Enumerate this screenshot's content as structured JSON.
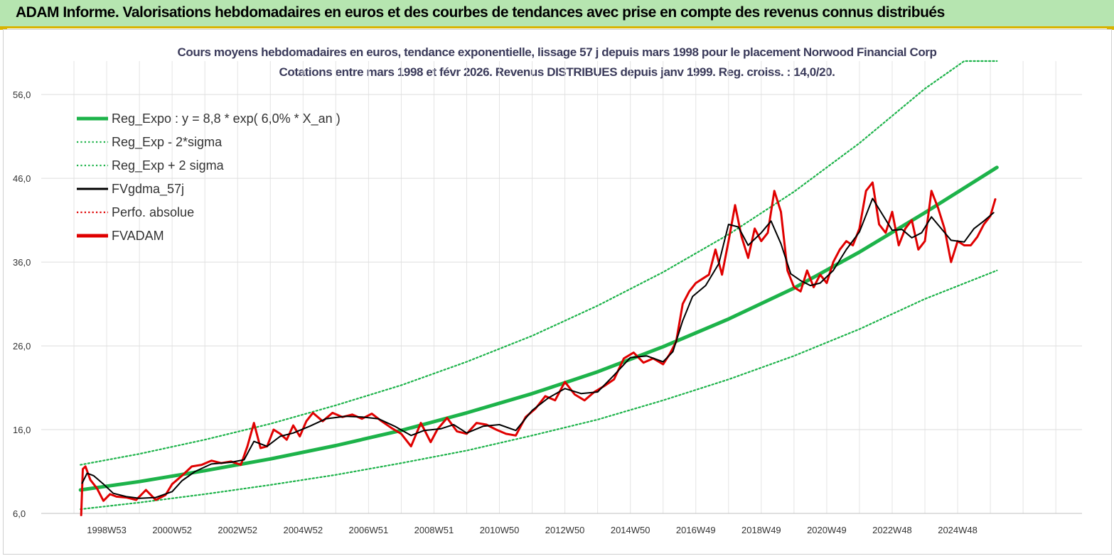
{
  "banner": {
    "title": "ADAM Informe. Valorisations hebdomadaires en euros et des courbes de tendances avec prise en compte des revenus connus distribués"
  },
  "chart_data": {
    "type": "line",
    "title": "Cours moyens hebdomadaires en euros, tendance exponentielle, lissage 57 j depuis mars 1998 pour le placement Norwood Financial Corp",
    "subtitle": "Cotations entre mars 1998 et févr 2026. Revenus DISTRIBUES depuis janv 1999. Reg. croiss. : 14,0/20.",
    "xlabel": "",
    "ylabel": "",
    "ylim": [
      6,
      60
    ],
    "xlim": [
      1997.0,
      2028.8
    ],
    "y_ticks": [
      "6,0",
      "16,0",
      "26,0",
      "36,0",
      "46,0",
      "56,0"
    ],
    "y_tick_values": [
      6,
      16,
      26,
      36,
      46,
      56
    ],
    "x_ticks": [
      "1998W53",
      "2000W52",
      "2002W52",
      "2004W52",
      "2006W51",
      "2008W51",
      "2010W50",
      "2012W50",
      "2014W50",
      "2016W49",
      "2018W49",
      "2020W49",
      "2022W48",
      "2024W48"
    ],
    "x_tick_values": [
      1999.0,
      2001.0,
      2003.0,
      2005.0,
      2007.0,
      2009.0,
      2011.0,
      2013.0,
      2015.0,
      2017.0,
      2019.0,
      2021.0,
      2023.0,
      2025.0
    ],
    "grid": true,
    "legend_position": "top-left",
    "legend": [
      {
        "name": "Reg_Expo : y = 8,8 * exp( 6,0% *  X_an )",
        "color": "#1db34a",
        "style": "solid-thick"
      },
      {
        "name": "Reg_Exp - 2*sigma",
        "color": "#1db34a",
        "style": "dotted"
      },
      {
        "name": "Reg_Exp + 2 sigma",
        "color": "#1db34a",
        "style": "dotted"
      },
      {
        "name": "FVgdma_57j",
        "color": "#000000",
        "style": "solid"
      },
      {
        "name": "Perfo. absolue",
        "color": "#e00000",
        "style": "dotted"
      },
      {
        "name": "FVADAM",
        "color": "#e00000",
        "style": "solid-thick"
      }
    ],
    "series": [
      {
        "name": "Reg_Expo : y = 8,8 * exp( 6,0% *  X_an )",
        "x": [
          1998.2,
          2000.0,
          2002.0,
          2004.0,
          2006.0,
          2008.0,
          2010.0,
          2012.0,
          2014.0,
          2016.0,
          2018.0,
          2020.0,
          2022.0,
          2024.0,
          2026.2
        ],
        "y": [
          8.8,
          9.8,
          11.1,
          12.5,
          14.1,
          15.9,
          18.0,
          20.3,
          22.9,
          25.9,
          29.2,
          32.9,
          37.2,
          41.9,
          47.3
        ]
      },
      {
        "name": "Reg_Exp - 2*sigma",
        "x": [
          1998.2,
          2000.0,
          2002.0,
          2004.0,
          2006.0,
          2008.0,
          2010.0,
          2012.0,
          2014.0,
          2016.0,
          2018.0,
          2020.0,
          2022.0,
          2024.0,
          2026.2
        ],
        "y": [
          6.5,
          7.3,
          8.3,
          9.4,
          10.6,
          12.0,
          13.5,
          15.3,
          17.2,
          19.5,
          22.0,
          24.8,
          28.0,
          31.6,
          35.0
        ]
      },
      {
        "name": "Reg_Exp + 2 sigma",
        "x": [
          1998.2,
          2000.0,
          2002.0,
          2004.0,
          2006.0,
          2008.0,
          2010.0,
          2012.0,
          2014.0,
          2016.0,
          2018.0,
          2020.0,
          2022.0,
          2024.0,
          2025.2,
          2026.2
        ],
        "y": [
          11.8,
          13.1,
          14.8,
          16.7,
          18.9,
          21.3,
          24.1,
          27.2,
          30.8,
          34.8,
          39.3,
          44.4,
          50.2,
          56.7,
          60.0,
          60.0
        ]
      },
      {
        "name": "FVgdma_57j",
        "x": [
          1998.25,
          1998.4,
          1998.6,
          1998.9,
          1999.2,
          1999.6,
          2000.0,
          2000.5,
          2001.0,
          2001.3,
          2001.7,
          2002.2,
          2002.8,
          2003.2,
          2003.5,
          2003.9,
          2004.3,
          2004.7,
          2005.2,
          2005.7,
          2006.3,
          2006.8,
          2007.3,
          2007.8,
          2008.3,
          2008.7,
          2009.2,
          2009.6,
          2010.0,
          2010.5,
          2011.0,
          2011.5,
          2012.0,
          2012.5,
          2013.0,
          2013.5,
          2014.0,
          2014.5,
          2015.0,
          2015.5,
          2016.0,
          2016.3,
          2016.6,
          2016.9,
          2017.3,
          2017.7,
          2018.0,
          2018.3,
          2018.6,
          2019.0,
          2019.3,
          2019.6,
          2019.9,
          2020.2,
          2020.5,
          2020.8,
          2021.2,
          2021.6,
          2022.0,
          2022.4,
          2022.7,
          2023.0,
          2023.3,
          2023.6,
          2023.9,
          2024.2,
          2024.5,
          2024.8,
          2025.2,
          2025.5,
          2025.8,
          2026.1
        ],
        "y": [
          9.6,
          10.8,
          10.5,
          9.5,
          8.4,
          8.0,
          7.8,
          7.9,
          8.6,
          9.9,
          11.0,
          11.9,
          12.1,
          12.4,
          14.6,
          14.0,
          15.2,
          15.6,
          16.4,
          17.3,
          17.6,
          17.5,
          17.3,
          16.4,
          15.3,
          15.9,
          16.1,
          16.6,
          15.6,
          16.4,
          16.6,
          15.9,
          18.3,
          19.8,
          20.9,
          20.3,
          20.5,
          22.5,
          24.6,
          24.8,
          24.1,
          25.3,
          29.0,
          31.9,
          33.2,
          35.8,
          40.5,
          40.2,
          38.0,
          39.5,
          40.9,
          38.2,
          34.6,
          33.8,
          33.2,
          33.5,
          35.0,
          37.5,
          39.6,
          43.6,
          41.7,
          39.8,
          39.9,
          38.9,
          39.5,
          41.4,
          40.0,
          38.6,
          38.4,
          40.0,
          40.9,
          41.9
        ]
      },
      {
        "name": "FVADAM",
        "x": [
          1998.22,
          1998.27,
          1998.35,
          1998.5,
          1998.7,
          1998.9,
          1999.1,
          1999.3,
          1999.6,
          1999.9,
          2000.2,
          2000.5,
          2000.8,
          2001.0,
          2001.3,
          2001.6,
          2001.9,
          2002.2,
          2002.5,
          2002.8,
          2003.1,
          2003.3,
          2003.5,
          2003.7,
          2003.9,
          2004.1,
          2004.3,
          2004.5,
          2004.7,
          2004.9,
          2005.1,
          2005.3,
          2005.6,
          2005.9,
          2006.2,
          2006.5,
          2006.8,
          2007.1,
          2007.4,
          2007.7,
          2008.0,
          2008.3,
          2008.6,
          2008.9,
          2009.1,
          2009.4,
          2009.7,
          2010.0,
          2010.3,
          2010.6,
          2010.9,
          2011.2,
          2011.5,
          2011.8,
          2012.1,
          2012.4,
          2012.7,
          2013.0,
          2013.3,
          2013.6,
          2013.9,
          2014.2,
          2014.5,
          2014.8,
          2015.1,
          2015.4,
          2015.7,
          2016.0,
          2016.2,
          2016.4,
          2016.6,
          2016.8,
          2017.0,
          2017.2,
          2017.4,
          2017.6,
          2017.8,
          2018.0,
          2018.2,
          2018.4,
          2018.6,
          2018.8,
          2019.0,
          2019.2,
          2019.4,
          2019.6,
          2019.8,
          2020.0,
          2020.2,
          2020.4,
          2020.6,
          2020.8,
          2021.0,
          2021.2,
          2021.4,
          2021.6,
          2021.8,
          2022.0,
          2022.2,
          2022.4,
          2022.6,
          2022.8,
          2023.0,
          2023.2,
          2023.4,
          2023.6,
          2023.8,
          2024.0,
          2024.2,
          2024.4,
          2024.6,
          2024.8,
          2025.0,
          2025.2,
          2025.4,
          2025.6,
          2025.8,
          2026.0,
          2026.15
        ],
        "y": [
          5.8,
          11.3,
          11.6,
          10.0,
          9.0,
          7.5,
          8.3,
          8.0,
          7.9,
          7.6,
          8.8,
          7.6,
          8.2,
          9.5,
          10.5,
          11.6,
          11.8,
          12.3,
          12.0,
          12.2,
          11.8,
          14.0,
          16.8,
          13.8,
          14.0,
          16.0,
          15.5,
          14.8,
          16.5,
          15.2,
          17.0,
          18.0,
          17.0,
          18.0,
          17.5,
          17.8,
          17.3,
          17.9,
          17.0,
          16.2,
          15.5,
          14.0,
          16.8,
          14.5,
          16.0,
          17.4,
          15.8,
          15.5,
          16.8,
          16.6,
          16.0,
          15.5,
          15.3,
          17.5,
          18.5,
          20.0,
          19.5,
          21.7,
          20.2,
          19.5,
          20.5,
          21.2,
          22.0,
          24.5,
          25.2,
          24.0,
          24.5,
          23.8,
          25.0,
          26.5,
          31.0,
          32.5,
          33.5,
          34.0,
          34.5,
          37.5,
          34.5,
          38.5,
          42.8,
          39.0,
          36.5,
          40.0,
          38.5,
          39.5,
          44.5,
          42.0,
          35.0,
          33.0,
          32.5,
          35.0,
          33.0,
          34.5,
          33.5,
          36.0,
          37.5,
          38.5,
          38.0,
          40.0,
          44.5,
          45.5,
          40.5,
          39.5,
          42.0,
          38.0,
          40.0,
          41.0,
          37.5,
          38.5,
          44.5,
          42.5,
          40.0,
          36.0,
          38.5,
          38.0,
          38.0,
          39.0,
          40.5,
          41.5,
          43.5
        ]
      }
    ]
  }
}
